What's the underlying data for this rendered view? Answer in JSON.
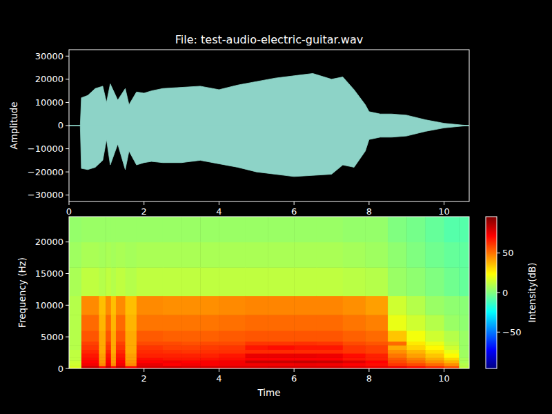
{
  "chart_data": [
    {
      "type": "area",
      "title": "File: test-audio-electric-guitar.wav",
      "y_label": "Amplitude",
      "x": [
        0,
        0.3,
        0.33,
        0.5,
        0.7,
        0.9,
        1.0,
        1.1,
        1.3,
        1.5,
        1.6,
        1.8,
        2.0,
        2.2,
        2.5,
        3.0,
        3.5,
        4.0,
        4.5,
        5.0,
        5.5,
        6.0,
        6.5,
        7.0,
        7.3,
        7.6,
        7.9,
        8.0,
        8.3,
        8.6,
        9.0,
        9.5,
        10.0,
        10.5,
        10.67
      ],
      "series": [
        {
          "color": "#8dd3c7",
          "values": [
            0,
            0,
            12000,
            13000,
            16000,
            17000,
            10000,
            18000,
            11000,
            16000,
            9000,
            14500,
            14000,
            15000,
            16000,
            16500,
            17000,
            15500,
            17500,
            19000,
            20500,
            21500,
            22500,
            20000,
            21000,
            15500,
            9000,
            6000,
            5000,
            5000,
            4500,
            2500,
            1000,
            200,
            0
          ]
        },
        {
          "color": "#8dd3c7",
          "values": [
            0,
            0,
            -18500,
            -19000,
            -18000,
            -15000,
            -6000,
            -17000,
            -8000,
            -19000,
            -11000,
            -17000,
            -16000,
            -15500,
            -16000,
            -16000,
            -15000,
            -16500,
            -18000,
            -20000,
            -21000,
            -22000,
            -21500,
            -21000,
            -17000,
            -18000,
            -11000,
            -6000,
            -5000,
            -5000,
            -4500,
            -2500,
            -1000,
            -200,
            0
          ]
        }
      ],
      "xlim": [
        0,
        10.67
      ],
      "xticks": [
        0,
        2,
        4,
        6,
        8,
        10
      ],
      "ylim": [
        -32768,
        32767
      ],
      "yticks": [
        {
          "value": -30000,
          "label": "−30000"
        },
        {
          "value": -20000,
          "label": "−20000"
        },
        {
          "value": -10000,
          "label": "−10000"
        },
        0,
        10000,
        20000,
        30000
      ]
    },
    {
      "type": "heatmap",
      "x_label": "Time",
      "y_label": "Frequency (Hz)",
      "x_edges": [
        0,
        0.33,
        0.8,
        0.98,
        1.12,
        1.25,
        1.5,
        1.8,
        2.5,
        3.0,
        3.5,
        4.0,
        4.7,
        5.3,
        6.0,
        6.6,
        7.3,
        7.9,
        8.5,
        9.0,
        9.5,
        10.0,
        10.4,
        10.67
      ],
      "y_edges": [
        0,
        400,
        900,
        1300,
        1700,
        2400,
        3000,
        3700,
        4300,
        6000,
        8500,
        11500,
        16000,
        20000,
        24000
      ],
      "cells": [
        [
          18,
          15,
          14,
          12,
          12,
          12,
          10,
          10,
          10,
          10,
          10,
          8,
          6,
          4
        ],
        [
          82,
          74,
          72,
          70,
          68,
          65,
          62,
          60,
          56,
          52,
          46,
          12,
          8,
          5
        ],
        [
          72,
          46,
          44,
          42,
          42,
          40,
          40,
          40,
          40,
          38,
          36,
          10,
          7,
          5
        ],
        [
          82,
          74,
          72,
          70,
          68,
          65,
          62,
          60,
          56,
          52,
          46,
          12,
          8,
          5
        ],
        [
          72,
          46,
          44,
          42,
          42,
          40,
          40,
          40,
          40,
          38,
          36,
          10,
          7,
          5
        ],
        [
          82,
          74,
          72,
          70,
          68,
          65,
          62,
          60,
          56,
          52,
          46,
          12,
          8,
          5
        ],
        [
          72,
          46,
          44,
          42,
          42,
          40,
          40,
          40,
          40,
          38,
          36,
          10,
          7,
          5
        ],
        [
          80,
          76,
          72,
          70,
          66,
          64,
          62,
          58,
          55,
          50,
          46,
          12,
          8,
          5
        ],
        [
          82,
          72,
          74,
          68,
          66,
          63,
          60,
          58,
          54,
          50,
          45,
          12,
          8,
          5
        ],
        [
          80,
          74,
          72,
          68,
          66,
          62,
          60,
          57,
          54,
          50,
          45,
          12,
          8,
          5
        ],
        [
          81,
          73,
          73,
          69,
          66,
          63,
          61,
          58,
          54,
          50,
          45,
          12,
          8,
          5
        ],
        [
          80,
          74,
          74,
          70,
          68,
          63,
          62,
          58,
          55,
          51,
          46,
          12,
          8,
          5
        ],
        [
          80,
          74,
          82,
          72,
          76,
          64,
          68,
          62,
          56,
          52,
          47,
          12,
          8,
          5
        ],
        [
          81,
          74,
          82,
          72,
          76,
          64,
          70,
          62,
          56,
          52,
          47,
          12,
          8,
          5
        ],
        [
          80,
          75,
          83,
          72,
          76,
          64,
          68,
          63,
          56,
          52,
          47,
          12,
          8,
          5
        ],
        [
          80,
          74,
          82,
          72,
          75,
          64,
          68,
          62,
          56,
          52,
          47,
          12,
          8,
          5
        ],
        [
          78,
          72,
          78,
          68,
          70,
          62,
          62,
          58,
          54,
          50,
          45,
          11,
          7,
          4
        ],
        [
          76,
          70,
          72,
          66,
          66,
          60,
          60,
          56,
          52,
          48,
          42,
          10,
          6,
          4
        ],
        [
          75,
          62,
          58,
          55,
          50,
          45,
          40,
          52,
          35,
          20,
          15,
          5,
          3,
          0
        ],
        [
          70,
          58,
          52,
          48,
          42,
          38,
          32,
          28,
          22,
          15,
          10,
          3,
          0,
          -2
        ],
        [
          65,
          52,
          45,
          40,
          35,
          30,
          25,
          20,
          15,
          10,
          5,
          0,
          -3,
          -5
        ],
        [
          58,
          45,
          38,
          32,
          25,
          20,
          15,
          12,
          10,
          5,
          3,
          -3,
          -5,
          -8
        ],
        [
          12,
          10,
          8,
          8,
          6,
          6,
          5,
          5,
          5,
          3,
          2,
          -5,
          -6,
          -8
        ]
      ],
      "xlim": [
        0,
        10.67
      ],
      "xticks": [
        2,
        4,
        6,
        8,
        10
      ],
      "ylim": [
        0,
        24000
      ],
      "yticks": [
        0,
        5000,
        10000,
        15000,
        20000
      ],
      "colorbar": {
        "label": "Intensity(dB)",
        "range": [
          -96,
          96
        ],
        "ticks": [
          {
            "value": -50,
            "label": "−50"
          },
          0,
          50
        ]
      }
    }
  ]
}
